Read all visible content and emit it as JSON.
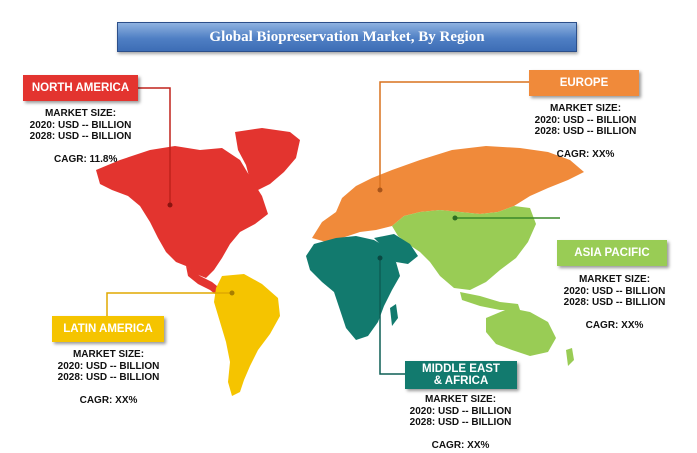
{
  "title": "Global Biopreservation Market, By Region",
  "colors": {
    "north_america": "#e3342f",
    "europe": "#f08a3a",
    "asia_pacific": "#99cc55",
    "latin_america": "#f5c400",
    "mea": "#127a6e",
    "title_bar": "#4f7fc4"
  },
  "regions": {
    "north_america": {
      "name": "NORTH AMERICA",
      "market_size_label": "MARKET SIZE:",
      "line_2020": "2020: USD -- BILLION",
      "line_2028": "2028: USD -- BILLION",
      "cagr": "CAGR: 11.8%"
    },
    "europe": {
      "name": "EUROPE",
      "market_size_label": "MARKET SIZE:",
      "line_2020": "2020: USD -- BILLION",
      "line_2028": "2028: USD -- BILLION",
      "cagr": "CAGR: XX%"
    },
    "asia_pacific": {
      "name": "ASIA PACIFIC",
      "market_size_label": "MARKET SIZE:",
      "line_2020": "2020: USD -- BILLION",
      "line_2028": "2028: USD -- BILLION",
      "cagr": "CAGR: XX%"
    },
    "latin_america": {
      "name": "LATIN AMERICA",
      "market_size_label": "MARKET SIZE:",
      "line_2020": "2020: USD -- BILLION",
      "line_2028": "2028: USD -- BILLION",
      "cagr": "CAGR: XX%"
    },
    "mea": {
      "name_line1": "MIDDLE EAST",
      "name_line2": "& AFRICA",
      "market_size_label": "MARKET SIZE:",
      "line_2020": "2020: USD -- BILLION",
      "line_2028": "2028: USD -- BILLION",
      "cagr": "CAGR: XX%"
    }
  }
}
